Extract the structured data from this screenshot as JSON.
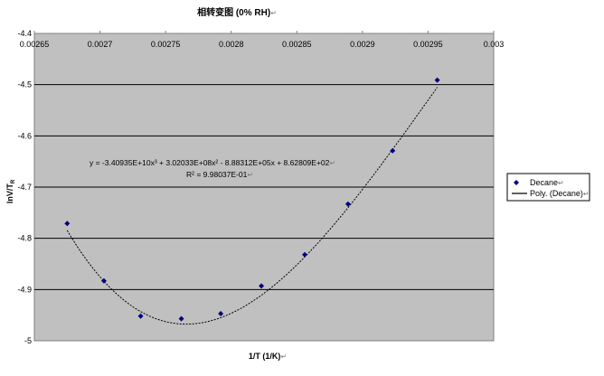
{
  "chart_data": {
    "type": "scatter",
    "title": "相转变图 (0% RH)",
    "xlabel": "1/T (1/K)",
    "ylabel": "lnV/T",
    "ylabel_subscript": "R",
    "xlim": [
      0.00265,
      0.003
    ],
    "ylim": [
      -5,
      -4.4
    ],
    "x_ticks": [
      "0.00265",
      "0.0027",
      "0.00275",
      "0.0028",
      "0.00285",
      "0.0029",
      "0.00295",
      "0.003"
    ],
    "y_ticks": [
      "-4.4",
      "-4.5",
      "-4.6",
      "-4.7",
      "-4.8",
      "-4.9",
      "-5"
    ],
    "x_ticks_position": "top",
    "grid": true,
    "legend_position": "right",
    "series": [
      {
        "name": "Decane",
        "color": "#000080",
        "marker": "diamond",
        "x": [
          0.002675,
          0.002703,
          0.002731,
          0.002762,
          0.002792,
          0.002823,
          0.002856,
          0.002889,
          0.002923,
          0.002957
        ],
        "y": [
          -4.771,
          -4.883,
          -4.952,
          -4.957,
          -4.947,
          -4.893,
          -4.832,
          -4.733,
          -4.629,
          -4.491
        ]
      }
    ],
    "trendline": {
      "name": "Poly. (Decane)",
      "color": "#000000",
      "equation": "y = -3.40935E+10x³ + 3.02033E+08x² - 8.88312E+05x + 8.62809E+02",
      "r_squared": "R² = 9.98037E-01",
      "coefficients": [
        -34093500000,
        302033000,
        -888312,
        862.809
      ]
    }
  }
}
